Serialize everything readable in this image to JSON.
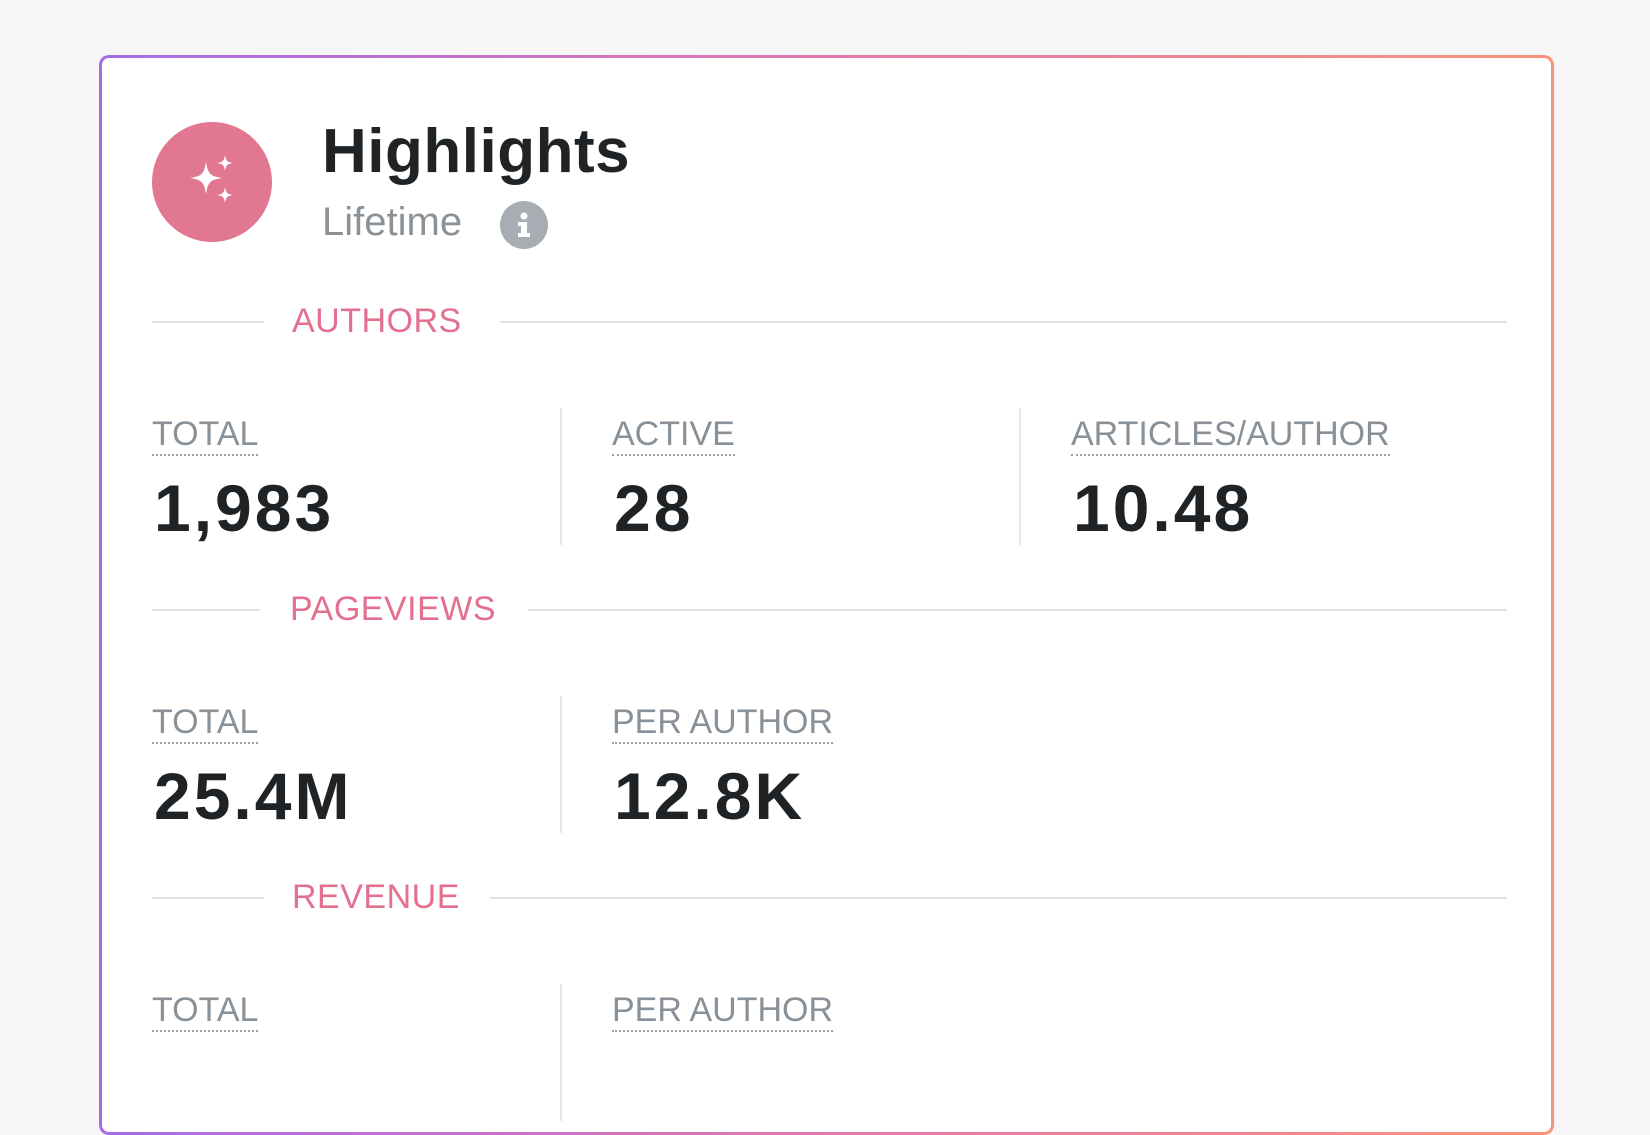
{
  "header": {
    "title": "Highlights",
    "subtitle": "Lifetime",
    "avatar_icon": "sparkles-icon",
    "info_icon": "info-icon"
  },
  "colors": {
    "accent": "#e27791",
    "section_label": "#e3708f",
    "border_gradient": [
      "#a66ce6",
      "#e77aa8",
      "#f8937a"
    ]
  },
  "sections": {
    "authors": {
      "label": "AUTHORS",
      "metrics": [
        {
          "label": "TOTAL",
          "value": "1,983"
        },
        {
          "label": "ACTIVE",
          "value": "28"
        },
        {
          "label": "ARTICLES/AUTHOR",
          "value": "10.48"
        }
      ]
    },
    "pageviews": {
      "label": "PAGEVIEWS",
      "metrics": [
        {
          "label": "TOTAL",
          "value": "25.4M"
        },
        {
          "label": "PER AUTHOR",
          "value": "12.8K"
        }
      ]
    },
    "revenue": {
      "label": "REVENUE",
      "metrics": [
        {
          "label": "TOTAL",
          "value": ""
        },
        {
          "label": "PER AUTHOR",
          "value": ""
        }
      ]
    }
  }
}
